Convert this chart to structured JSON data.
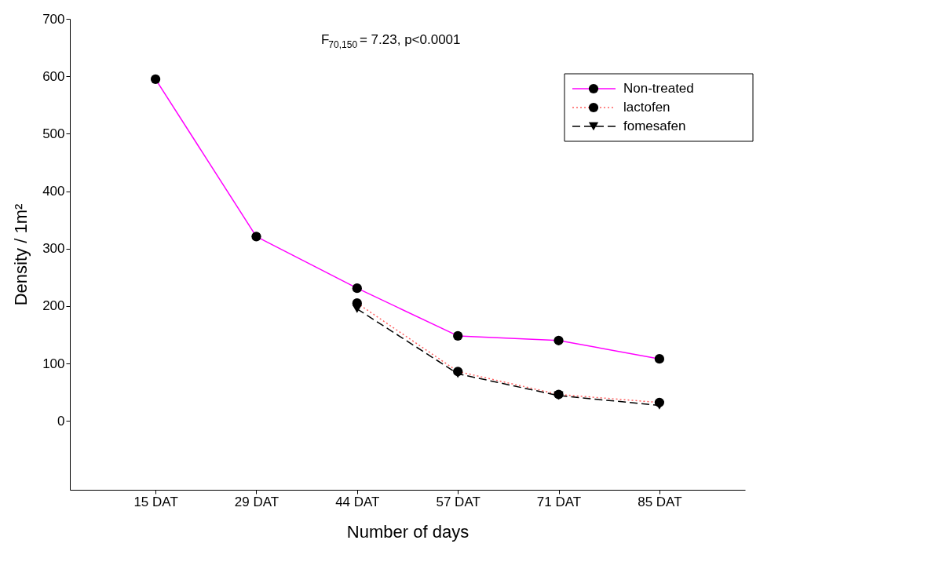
{
  "chart_data": {
    "type": "line",
    "xlabel": "Number of days",
    "ylabel": "Density / 1m²",
    "annotations": [
      "F$_{70,150}$ = 7.23, p<0.0001"
    ],
    "categories": [
      "15 DAT",
      "29 DAT",
      "44 DAT",
      "57 DAT",
      "71 DAT",
      "85 DAT"
    ],
    "series": [
      {
        "name": "Non-treated",
        "color": "#ff00ff",
        "line_style": "solid",
        "marker": "circle",
        "values": [
          595,
          321,
          231,
          148,
          140,
          108
        ]
      },
      {
        "name": "lactofen",
        "color": "#ff6060",
        "line_style": "dotted",
        "marker": "circle",
        "values": [
          null,
          null,
          205,
          86,
          46,
          32
        ]
      },
      {
        "name": "fomesafen",
        "color": "#000000",
        "line_style": "dashed",
        "marker": "triangle",
        "values": [
          null,
          null,
          195,
          82,
          44,
          27
        ]
      }
    ],
    "ylim": [
      -120,
      700
    ],
    "yticks": [
      0,
      100,
      200,
      300,
      400,
      500,
      600,
      700
    ],
    "grid": false,
    "legend": "top right"
  }
}
